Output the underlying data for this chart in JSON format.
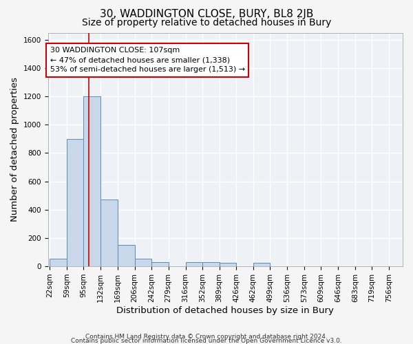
{
  "title": "30, WADDINGTON CLOSE, BURY, BL8 2JB",
  "subtitle": "Size of property relative to detached houses in Bury",
  "xlabel": "Distribution of detached houses by size in Bury",
  "ylabel": "Number of detached properties",
  "footer_line1": "Contains HM Land Registry data © Crown copyright and database right 2024.",
  "footer_line2": "Contains public sector information licensed under the Open Government Licence v3.0.",
  "bin_labels": [
    "22sqm",
    "59sqm",
    "95sqm",
    "132sqm",
    "169sqm",
    "206sqm",
    "242sqm",
    "279sqm",
    "316sqm",
    "352sqm",
    "389sqm",
    "426sqm",
    "462sqm",
    "499sqm",
    "536sqm",
    "573sqm",
    "609sqm",
    "646sqm",
    "683sqm",
    "719sqm",
    "756sqm"
  ],
  "bar_heights": [
    55,
    900,
    1200,
    470,
    150,
    55,
    30,
    0,
    30,
    30,
    25,
    0,
    25,
    0,
    0,
    0,
    0,
    0,
    0,
    0,
    0
  ],
  "bin_edges": [
    22,
    59,
    95,
    132,
    169,
    206,
    242,
    279,
    316,
    352,
    389,
    426,
    462,
    499,
    536,
    573,
    609,
    646,
    683,
    719,
    756
  ],
  "bar_color": "#c8d8ea",
  "bar_edge_color": "#5a8db5",
  "property_size": 107,
  "red_line_color": "#cc0000",
  "annotation_line1": "30 WADDINGTON CLOSE: 107sqm",
  "annotation_line2": "← 47% of detached houses are smaller (1,338)",
  "annotation_line3": "53% of semi-detached houses are larger (1,513) →",
  "annotation_box_color": "#ffffff",
  "annotation_box_edge": "#cc0000",
  "ylim": [
    0,
    1650
  ],
  "yticks": [
    0,
    200,
    400,
    600,
    800,
    1000,
    1200,
    1400,
    1600
  ],
  "background_color": "#eef2f7",
  "grid_color": "#ffffff",
  "fig_background": "#f5f5f5",
  "title_fontsize": 11,
  "subtitle_fontsize": 10,
  "axis_label_fontsize": 9.5,
  "tick_fontsize": 7.5,
  "annotation_fontsize": 8
}
